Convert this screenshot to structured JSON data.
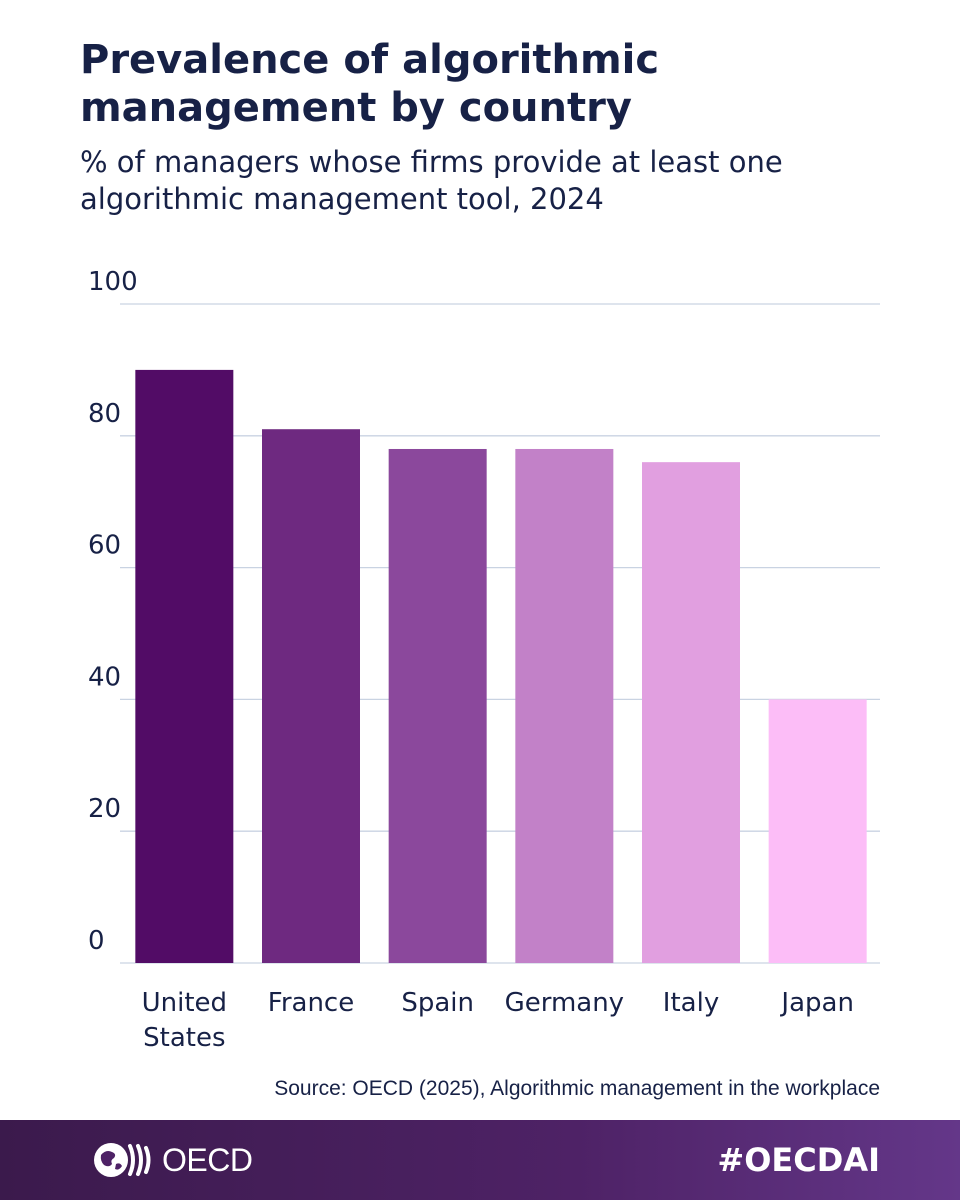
{
  "title": "Prevalence of algorithmic management by country",
  "subtitle": "% of managers whose firms provide at least one algorithmic management tool, 2024",
  "source": "Source: OECD (2025), Algorithmic management in the workplace",
  "footer": {
    "logo_text": "OECD",
    "hashtag": "#OECDAI",
    "logo_icon": "oecd-globe-icon"
  },
  "colors": {
    "text": "#172146",
    "grid": "#c9d3e2",
    "bars": [
      "#520c66",
      "#6e2980",
      "#8b489c",
      "#c281c8",
      "#e19fe0",
      "#fcbdf7"
    ]
  },
  "chart_data": {
    "type": "bar",
    "categories": [
      "United States",
      "France",
      "Spain",
      "Germany",
      "Italy",
      "Japan"
    ],
    "category_lines": [
      [
        "United",
        "States"
      ],
      [
        "France"
      ],
      [
        "Spain"
      ],
      [
        "Germany"
      ],
      [
        "Italy"
      ],
      [
        "Japan"
      ]
    ],
    "values": [
      90,
      81,
      78,
      78,
      76,
      40
    ],
    "yticks": [
      0,
      20,
      40,
      60,
      80,
      100
    ],
    "ylim": [
      0,
      100
    ],
    "grid": true,
    "xlabel": "",
    "ylabel": ""
  }
}
